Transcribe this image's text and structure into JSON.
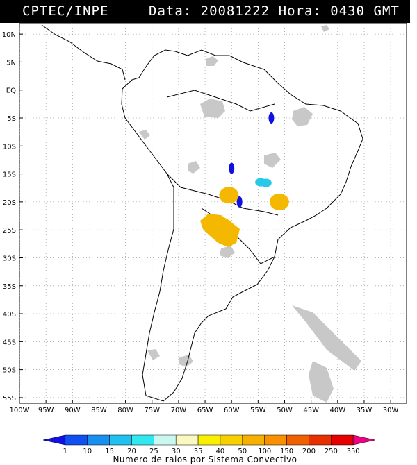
{
  "header": {
    "source": "CPTEC/INPE",
    "date_label": "Data:",
    "date_value": "20081222",
    "time_label": "Hora:",
    "time_value": "0430",
    "timezone": "GMT"
  },
  "map": {
    "lat_labels": [
      "10N",
      "5N",
      "EQ",
      "5S",
      "10S",
      "15S",
      "20S",
      "25S",
      "30S",
      "35S",
      "40S",
      "45S",
      "50S",
      "55S"
    ],
    "lon_labels": [
      "100W",
      "95W",
      "90W",
      "85W",
      "80W",
      "75W",
      "70W",
      "65W",
      "60W",
      "55W",
      "50W",
      "45W",
      "40W",
      "35W",
      "30W"
    ],
    "lat_range": [
      -56,
      12
    ],
    "lon_range": [
      -100,
      -27
    ],
    "colors": {
      "cloud": "#c8c8c8",
      "coast": "#000000",
      "grid": "#888888"
    },
    "lightning_systems": [
      {
        "lon": -52.5,
        "lat": -5.0,
        "class": "1-10",
        "color": "#1010e0"
      },
      {
        "lon": -60.0,
        "lat": -14.0,
        "class": "1-10",
        "color": "#1010e0"
      },
      {
        "lon": -58.5,
        "lat": -20.0,
        "class": "1-10",
        "color": "#1010e0"
      },
      {
        "lon": -54.5,
        "lat": -16.5,
        "class": "20-25",
        "color": "#28c8e8"
      },
      {
        "lon": -53.5,
        "lat": -16.6,
        "class": "20-25",
        "color": "#28c8e8"
      },
      {
        "lon": -60.5,
        "lat": -18.8,
        "class": "50-100",
        "color": "#f5b800"
      },
      {
        "lon": -51.0,
        "lat": -20.0,
        "class": "50-100",
        "color": "#f5b800"
      },
      {
        "lon": -61.5,
        "lat": -24.5,
        "class": "50-100",
        "color": "#f5b800"
      }
    ]
  },
  "colorbar": {
    "labels": [
      "1",
      "10",
      "15",
      "20",
      "25",
      "30",
      "35",
      "40",
      "50",
      "100",
      "150",
      "200",
      "250",
      "350"
    ],
    "colors": [
      "#1010e8",
      "#1050f0",
      "#1890f0",
      "#20c0f0",
      "#30e8f0",
      "#c8f8f0",
      "#f8f8c0",
      "#f8f000",
      "#f8d000",
      "#f8b000",
      "#f89000",
      "#f06000",
      "#e83000",
      "#e80000",
      "#f00080"
    ],
    "caption": "Numero de raios por Sistema Convectivo"
  }
}
